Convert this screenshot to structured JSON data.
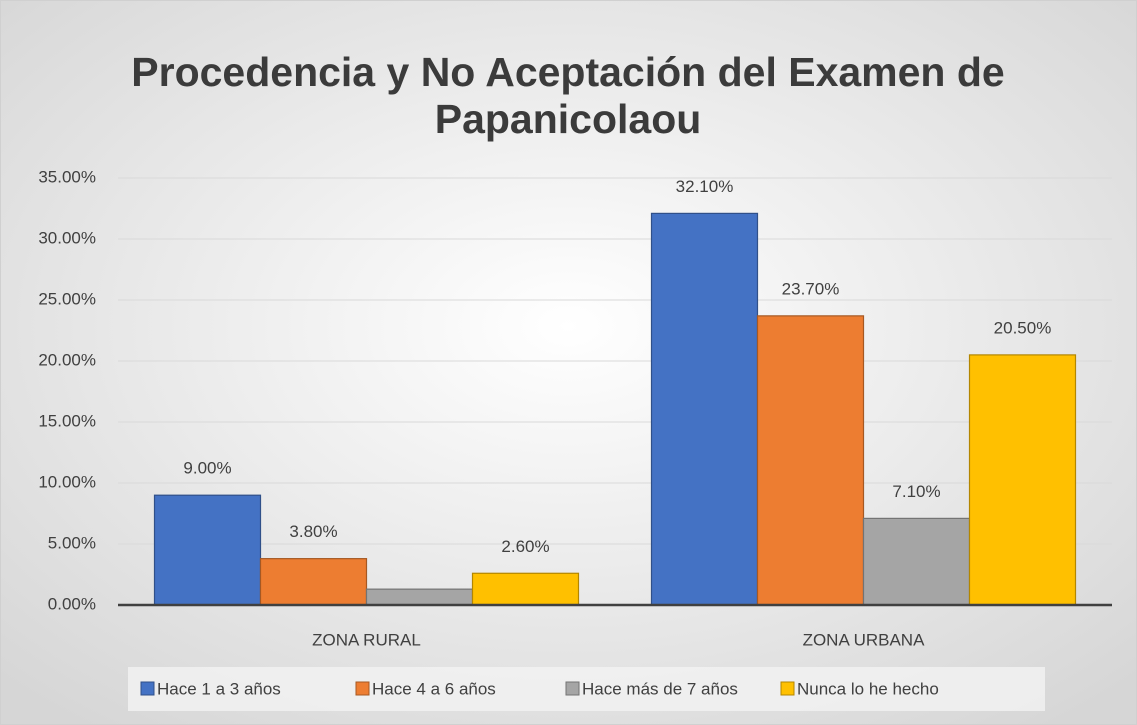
{
  "chart_data": {
    "type": "bar",
    "title": [
      "Procedencia y No Aceptación del Examen de",
      "Papanicolaou"
    ],
    "categories": [
      "ZONA RURAL",
      "ZONA URBANA"
    ],
    "series": [
      {
        "name": "Hace 1 a 3 años",
        "color": "#4472c4",
        "values": [
          9.0,
          32.1
        ],
        "value_labels": [
          "9.00%",
          "32.10%"
        ]
      },
      {
        "name": "Hace 4 a 6 años",
        "color": "#ed7d31",
        "values": [
          3.8,
          23.7
        ],
        "value_labels": [
          "3.80%",
          "23.70%"
        ]
      },
      {
        "name": "Hace más de 7 años",
        "color": "#a5a5a5",
        "values": [
          1.3,
          7.1
        ],
        "value_labels": [
          null,
          "7.10%"
        ]
      },
      {
        "name": "Nunca lo he hecho",
        "color": "#ffc000",
        "values": [
          2.6,
          20.5
        ],
        "value_labels": [
          "2.60%",
          "20.50%"
        ]
      }
    ],
    "ylim": [
      0,
      35
    ],
    "yticks": [
      {
        "value": 0,
        "label": "0.00%"
      },
      {
        "value": 5,
        "label": "5.00%"
      },
      {
        "value": 10,
        "label": "10.00%"
      },
      {
        "value": 15,
        "label": "15.00%"
      },
      {
        "value": 20,
        "label": "20.00%"
      },
      {
        "value": 25,
        "label": "25.00%"
      },
      {
        "value": 30,
        "label": "30.00%"
      },
      {
        "value": 35,
        "label": "35.00%"
      }
    ],
    "grid": true,
    "legend": "bottom"
  }
}
